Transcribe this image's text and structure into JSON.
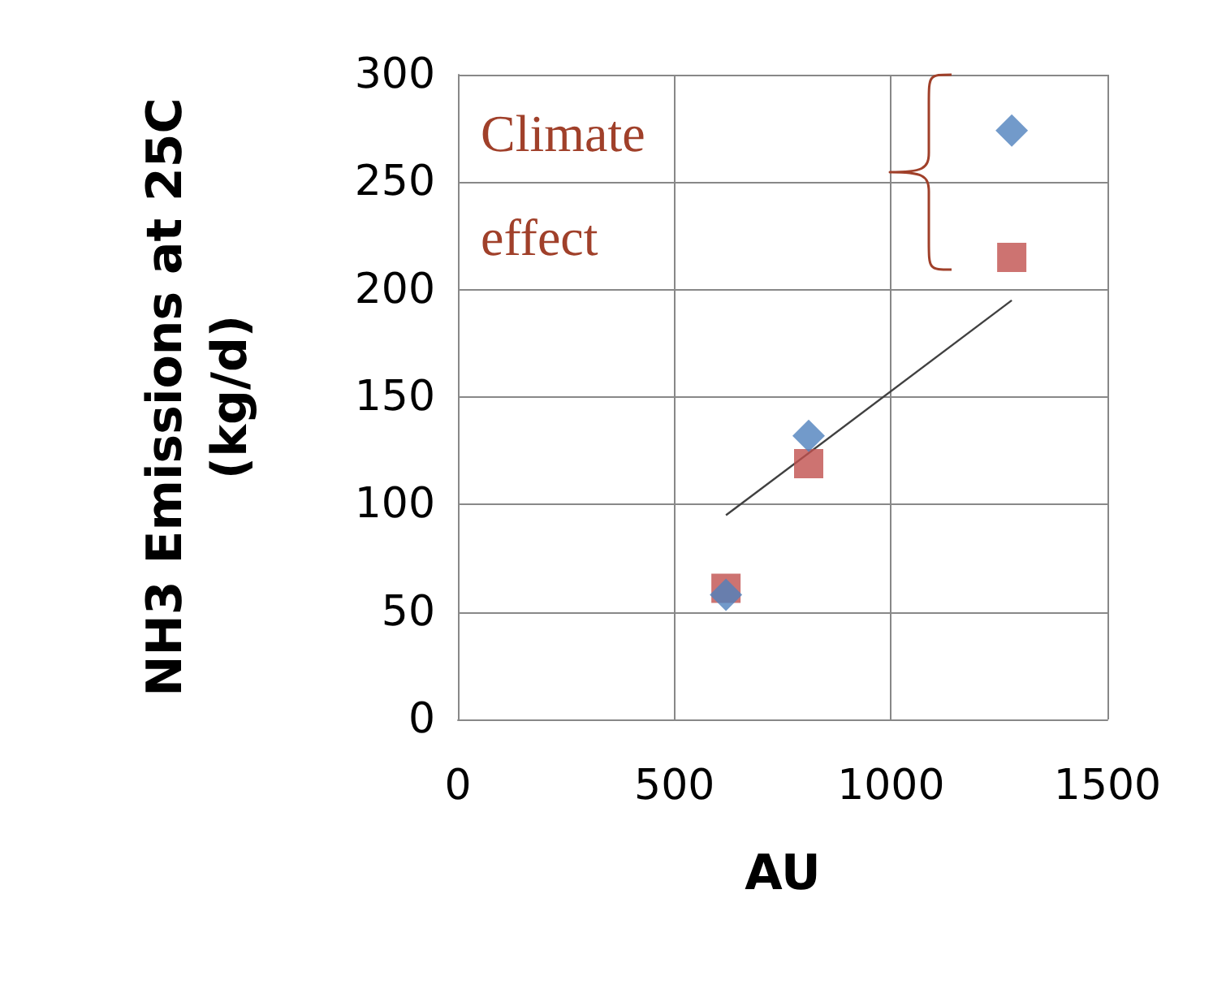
{
  "chart_data": {
    "type": "scatter",
    "xlabel": "AU",
    "ylabel": "NH3 Emissions at 25C\n(kg/d)",
    "x": [
      619,
      810,
      1279
    ],
    "series": [
      {
        "color": "#4f81bd",
        "marker": "diamond",
        "values": [
          58,
          132,
          274
        ]
      },
      {
        "color": "#c0504d",
        "marker": "square",
        "values": [
          61,
          119,
          215
        ]
      },
      {
        "type": "line",
        "color": "#404040",
        "marker": "none",
        "x": [
          619,
          1279
        ],
        "values": [
          95,
          195
        ]
      }
    ],
    "xlim": [
      0,
      1500
    ],
    "xticks": [
      0,
      500,
      1000,
      1500
    ],
    "ylim": [
      0,
      300
    ],
    "yticks": [
      0,
      50,
      100,
      150,
      200,
      250,
      300
    ],
    "grid": true,
    "annotations": [
      "Climate\neffect"
    ]
  }
}
